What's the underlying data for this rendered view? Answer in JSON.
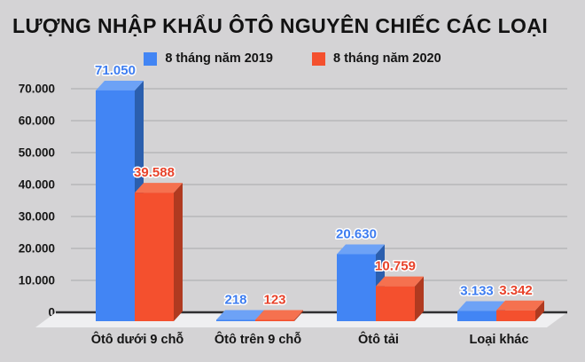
{
  "title": "LƯỢNG NHẬP KHẨU ÔTÔ NGUYÊN CHIẾC CÁC LOẠI",
  "legend": [
    {
      "label": "8 tháng năm 2019",
      "color": "#4285f4"
    },
    {
      "label": "8 tháng năm 2020",
      "color": "#f4502e"
    }
  ],
  "chart_data": {
    "type": "bar",
    "style": "3d-extruded",
    "title": "LƯỢNG NHẬP KHẨU ÔTÔ NGUYÊN CHIẾC CÁC LOẠI",
    "categories": [
      "Ôtô dưới 9 chỗ",
      "Ôtô trên 9 chỗ",
      "Ôtô tải",
      "Loại khác"
    ],
    "series": [
      {
        "name": "8 tháng năm 2019",
        "values": [
          71050,
          218,
          20630,
          3133
        ],
        "value_labels": [
          "71.050",
          "218",
          "20.630",
          "3.133"
        ],
        "colors": {
          "front": "#4285f4",
          "top": "#6da2f6",
          "side": "#2b5fae",
          "label": "#3e7df0"
        }
      },
      {
        "name": "8 tháng năm 2020",
        "values": [
          39588,
          123,
          10759,
          3342
        ],
        "value_labels": [
          "39.588",
          "123",
          "10.759",
          "3.342"
        ],
        "colors": {
          "front": "#f4502e",
          "top": "#f5714f",
          "side": "#b03a20",
          "label": "#e8432b"
        }
      }
    ],
    "xlabel": "",
    "ylabel": "",
    "ylim": [
      0,
      70000
    ],
    "yticks": [
      {
        "value": 0,
        "label": "0"
      },
      {
        "value": 10000,
        "label": "10.000"
      },
      {
        "value": 20000,
        "label": "20.000"
      },
      {
        "value": 30000,
        "label": "30.000"
      },
      {
        "value": 40000,
        "label": "40.000"
      },
      {
        "value": 50000,
        "label": "50.000"
      },
      {
        "value": 60000,
        "label": "60.000"
      },
      {
        "value": 70000,
        "label": "70.000"
      }
    ],
    "grid": true,
    "legend_position": "top-center"
  },
  "colors": {
    "background": "#d4d3d5",
    "gridline": "#a9a9ab",
    "axis_line": "#2f2f31",
    "floor": "#efeff1",
    "text": "#141414"
  }
}
